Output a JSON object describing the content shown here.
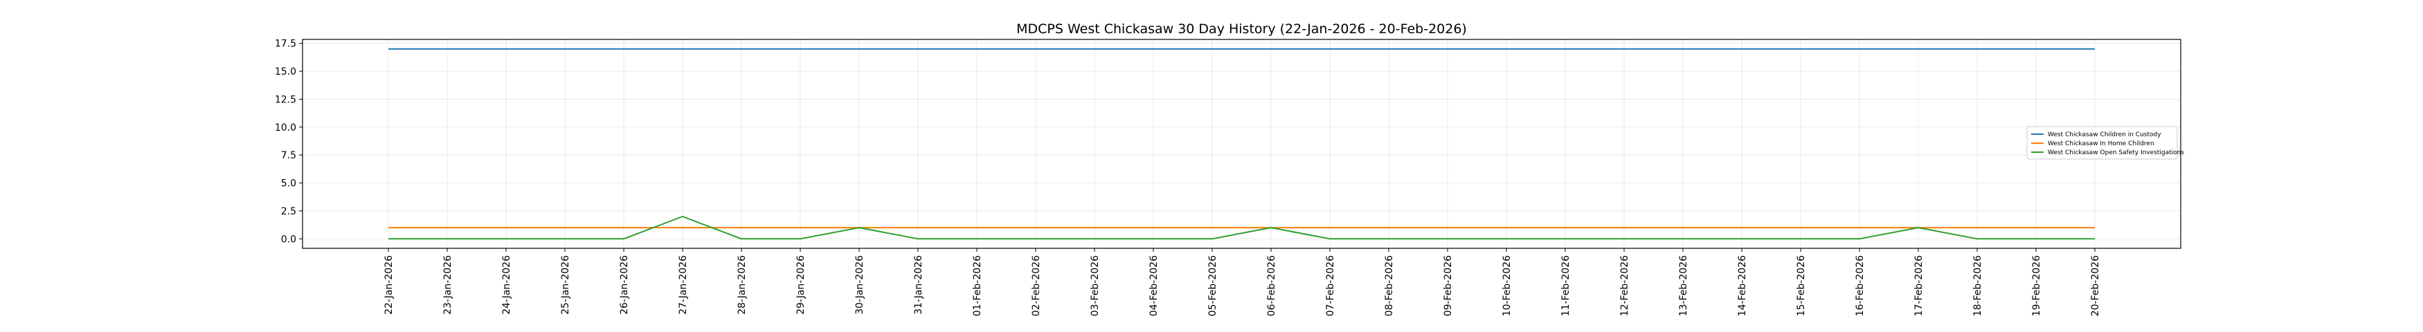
{
  "chart_data": {
    "type": "line",
    "title": "MDCPS West Chickasaw 30 Day History (22-Jan-2026 - 20-Feb-2026)",
    "xlabel": "",
    "ylabel": "",
    "categories": [
      "22-Jan-2026",
      "23-Jan-2026",
      "24-Jan-2026",
      "25-Jan-2026",
      "26-Jan-2026",
      "27-Jan-2026",
      "28-Jan-2026",
      "29-Jan-2026",
      "30-Jan-2026",
      "31-Jan-2026",
      "01-Feb-2026",
      "02-Feb-2026",
      "03-Feb-2026",
      "04-Feb-2026",
      "05-Feb-2026",
      "06-Feb-2026",
      "07-Feb-2026",
      "08-Feb-2026",
      "09-Feb-2026",
      "10-Feb-2026",
      "11-Feb-2026",
      "12-Feb-2026",
      "13-Feb-2026",
      "14-Feb-2026",
      "15-Feb-2026",
      "16-Feb-2026",
      "17-Feb-2026",
      "18-Feb-2026",
      "19-Feb-2026",
      "20-Feb-2026"
    ],
    "ylim": [
      -0.85,
      17.85
    ],
    "yticks": [
      "0.0",
      "2.5",
      "5.0",
      "7.5",
      "10.0",
      "12.5",
      "15.0",
      "17.5"
    ],
    "grid": true,
    "legend_position": "center-right",
    "series": [
      {
        "name": "West Chickasaw Children in Custody",
        "color": "#1f77b4",
        "values": [
          17,
          17,
          17,
          17,
          17,
          17,
          17,
          17,
          17,
          17,
          17,
          17,
          17,
          17,
          17,
          17,
          17,
          17,
          17,
          17,
          17,
          17,
          17,
          17,
          17,
          17,
          17,
          17,
          17,
          17
        ]
      },
      {
        "name": "West Chickasaw In Home Children",
        "color": "#ff7f0e",
        "values": [
          1,
          1,
          1,
          1,
          1,
          1,
          1,
          1,
          1,
          1,
          1,
          1,
          1,
          1,
          1,
          1,
          1,
          1,
          1,
          1,
          1,
          1,
          1,
          1,
          1,
          1,
          1,
          1,
          1,
          1
        ]
      },
      {
        "name": "West Chickasaw Open Safety Investigations",
        "color": "#2ca02c",
        "values": [
          0,
          0,
          0,
          0,
          0,
          2,
          0,
          0,
          1,
          0,
          0,
          0,
          0,
          0,
          0,
          1,
          0,
          0,
          0,
          0,
          0,
          0,
          0,
          0,
          0,
          0,
          1,
          0,
          0,
          0
        ]
      }
    ]
  }
}
